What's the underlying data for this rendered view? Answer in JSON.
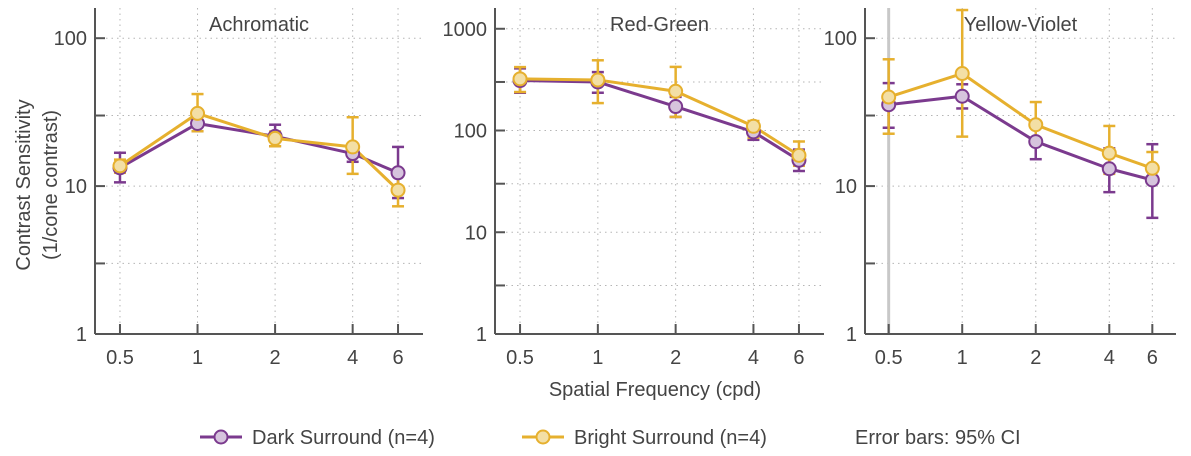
{
  "figure": {
    "ylabel_line1": "Contrast Sensitivity",
    "ylabel_line2": "(1/cone contrast)",
    "xlabel": "Spatial Frequency (cpd)",
    "x_ticks": [
      0.5,
      1,
      2,
      4,
      6
    ],
    "x_tick_labels": [
      "0.5",
      "1",
      "2",
      "4",
      "6"
    ],
    "error_note": "Error bars: 95% CI"
  },
  "legend": [
    {
      "name": "Dark Surround (n=4)",
      "color": "#7b3a8e"
    },
    {
      "name": "Bright Surround (n=4)",
      "color": "#e6b02e"
    }
  ],
  "colors": {
    "dark": "#7b3a8e",
    "dark_marker_fill": "#d6c4dd",
    "bright": "#e6b02e",
    "bright_marker_fill": "#f3dfa5",
    "axis": "#555555",
    "grid": "#b5b5b5",
    "highlight_line": "#c8c8c8"
  },
  "chart_data": [
    {
      "type": "line",
      "title": "Achromatic",
      "x_scale": "log",
      "y_scale": "log",
      "xlim": [
        0.4,
        7.5
      ],
      "ylim": [
        1,
        160
      ],
      "y_ticks": [
        1,
        10,
        100
      ],
      "y_tick_labels": [
        "1",
        "10",
        "100"
      ],
      "grid": "dotted",
      "highlight_x": null,
      "series": [
        {
          "name": "Dark Surround (n=4)",
          "x": [
            0.5,
            1,
            2,
            4,
            6
          ],
          "y": [
            13.3,
            26.5,
            21.7,
            16.6,
            12.3
          ],
          "ci_low": [
            10.6,
            23.5,
            18.6,
            14.6,
            8.3
          ],
          "ci_high": [
            16.8,
            30.0,
            26.0,
            18.7,
            18.4
          ]
        },
        {
          "name": "Bright Surround (n=4)",
          "x": [
            0.5,
            1,
            2,
            4,
            6
          ],
          "y": [
            13.7,
            31.0,
            21.0,
            18.4,
            9.4
          ],
          "ci_low": [
            12.3,
            23.5,
            18.6,
            12.1,
            7.3
          ],
          "ci_high": [
            15.1,
            41.9,
            23.4,
            29.2,
            12.0
          ]
        }
      ]
    },
    {
      "type": "line",
      "title": "Red-Green",
      "x_scale": "log",
      "y_scale": "log",
      "xlim": [
        0.4,
        7.5
      ],
      "ylim": [
        1,
        1600
      ],
      "y_ticks": [
        1,
        10,
        100,
        1000
      ],
      "y_tick_labels": [
        "1",
        "10",
        "100",
        "1000"
      ],
      "grid": "dotted",
      "highlight_x": null,
      "series": [
        {
          "name": "Dark Surround (n=4)",
          "x": [
            0.5,
            1,
            2,
            4,
            6
          ],
          "y": [
            310,
            300,
            172,
            97,
            51
          ],
          "ci_low": [
            235,
            235,
            136,
            81,
            40
          ],
          "ci_high": [
            408,
            375,
            214,
            115,
            65
          ]
        },
        {
          "name": "Bright Surround (n=4)",
          "x": [
            0.5,
            1,
            2,
            4,
            6
          ],
          "y": [
            322,
            314,
            243,
            110,
            57
          ],
          "ci_low": [
            239,
            186,
            136,
            85,
            45
          ],
          "ci_high": [
            420,
            490,
            422,
            124,
            78
          ]
        }
      ]
    },
    {
      "type": "line",
      "title": "Yellow-Violet",
      "x_scale": "log",
      "y_scale": "log",
      "xlim": [
        0.4,
        7.5
      ],
      "ylim": [
        1,
        160
      ],
      "y_ticks": [
        1,
        10,
        100
      ],
      "y_tick_labels": [
        "1",
        "10",
        "100"
      ],
      "grid": "dotted",
      "highlight_x": 0.5,
      "series": [
        {
          "name": "Dark Surround (n=4)",
          "x": [
            0.5,
            1,
            2,
            4,
            6
          ],
          "y": [
            35.5,
            40.5,
            20.0,
            13.1,
            11.0
          ],
          "ci_low": [
            24.8,
            33.5,
            15.2,
            9.1,
            6.1
          ],
          "ci_high": [
            49.7,
            48.8,
            26.0,
            18.0,
            19.2
          ]
        },
        {
          "name": "Bright Surround (n=4)",
          "x": [
            0.5,
            1,
            2,
            4,
            6
          ],
          "y": [
            40.0,
            57.7,
            26.0,
            16.7,
            13.2
          ],
          "ci_low": [
            22.6,
            21.6,
            20.0,
            12.1,
            11.0
          ],
          "ci_high": [
            72.0,
            155.0,
            37.0,
            25.5,
            17.0
          ]
        }
      ]
    }
  ]
}
